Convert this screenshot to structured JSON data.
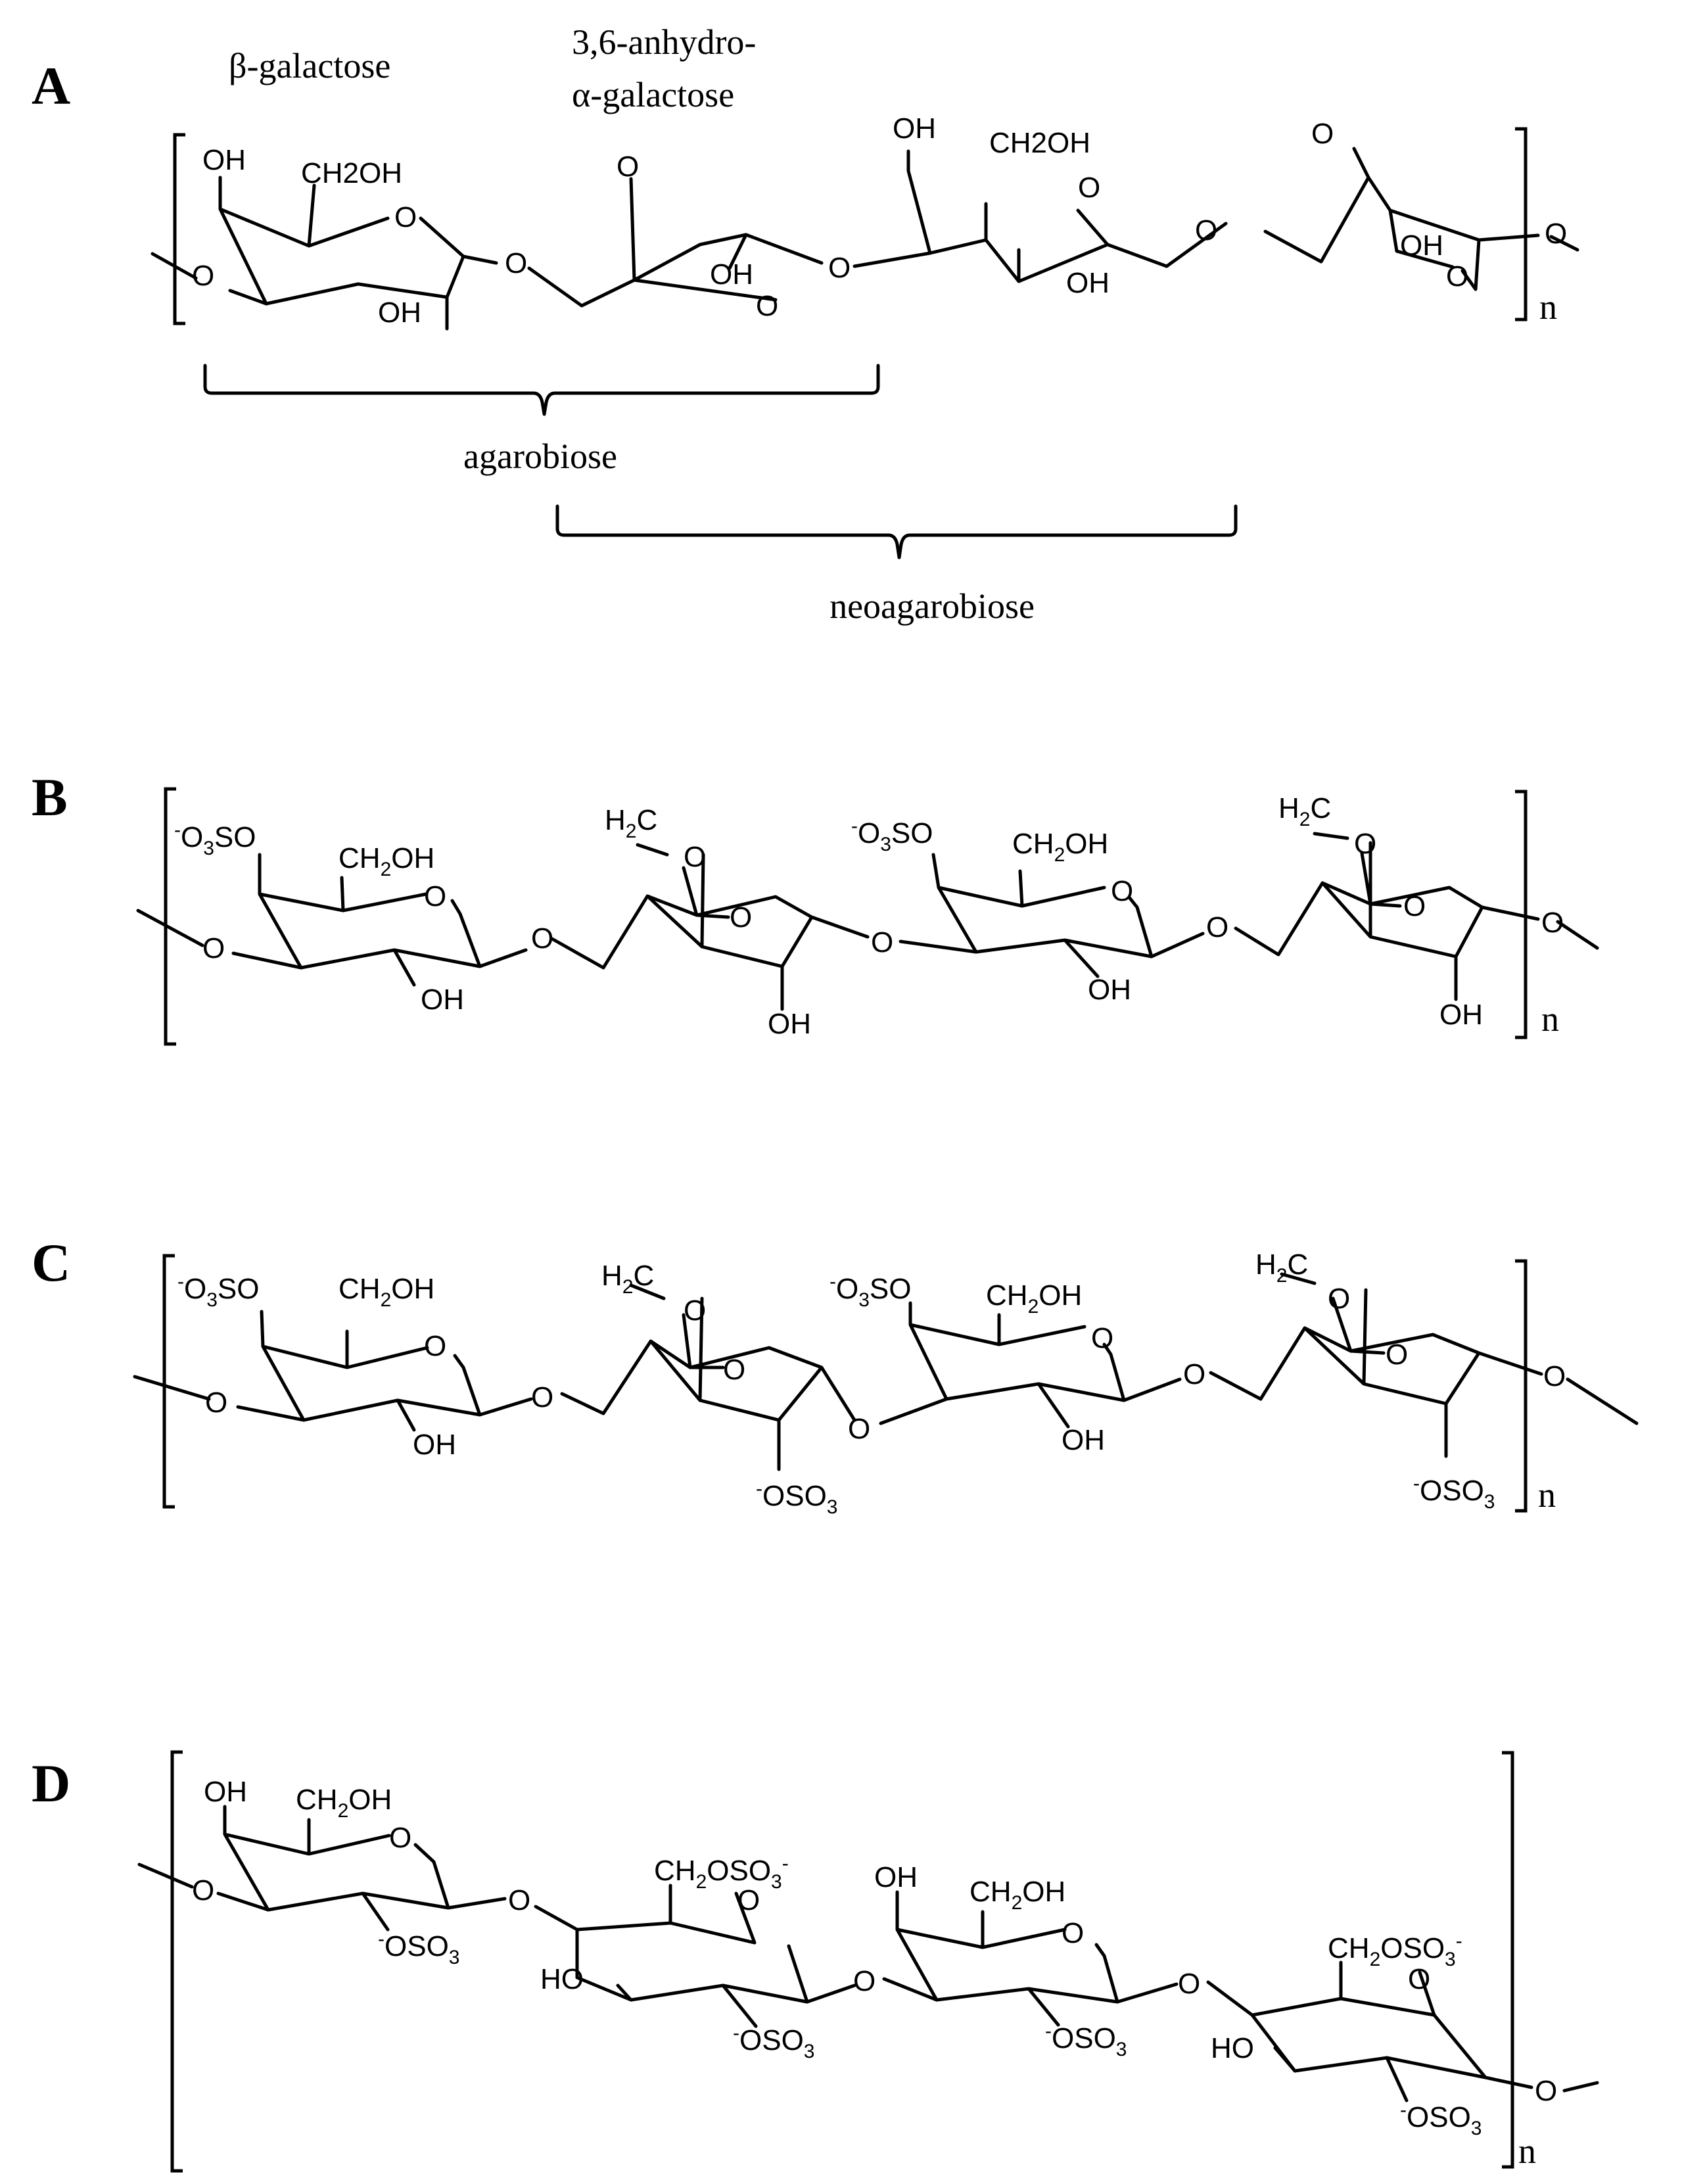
{
  "panels": {
    "a": {
      "label": "A",
      "unit1_name": "β-galactose",
      "unit2_name_line1": "3,6-anhydro-",
      "unit2_name_line2": "α-galactose",
      "brace1_label": "agarobiose",
      "brace2_label": "neoagarobiose",
      "repeat": "n",
      "atoms": {
        "oh1": "OH",
        "ch2oh1": "CH2OH",
        "o_ring1": "O",
        "oh_low1": "OH",
        "o_left": "O",
        "o_link1": "O",
        "o_bridge2": "O",
        "oh2": "OH",
        "o_ring2": "O",
        "o_link2": "O",
        "oh3": "OH",
        "ch2oh3": "CH2OH",
        "o_ring3": "O",
        "oh_low3": "OH",
        "o_link3": "O",
        "o_bridge4": "O",
        "oh4": "OH",
        "o_ring4": "O",
        "o_right": "O"
      }
    },
    "b": {
      "label": "B",
      "repeat": "n",
      "atoms": {
        "so3_1": "-O3SO",
        "ch2oh1": "CH2OH",
        "o_ring1": "O",
        "oh_low1": "OH",
        "o_left": "O",
        "o_link1": "O",
        "h2c2": "H2C",
        "o_bridge2": "O",
        "o_ring2": "O",
        "oh2": "OH",
        "o_link2": "O",
        "so3_3": "-O3SO",
        "ch2oh3": "CH2OH",
        "o_ring3": "O",
        "oh_low3": "OH",
        "o_link3": "O",
        "h2c4": "H2C",
        "o_bridge4": "O",
        "o_ring4": "O",
        "oh4": "OH",
        "o_right": "O"
      }
    },
    "c": {
      "label": "C",
      "repeat": "n",
      "atoms": {
        "so3_1": "-O3SO",
        "ch2oh1": "CH2OH",
        "o_ring1": "O",
        "oh_low1": "OH",
        "o_left": "O",
        "o_link1": "O",
        "h2c2": "H2C",
        "o_bridge2": "O",
        "o_ring2": "O",
        "oso3_2": "-OSO3",
        "o_link2": "O",
        "so3_3": "-O3SO",
        "ch2oh3": "CH2OH",
        "o_ring3": "O",
        "oh_low3": "OH",
        "o_link3": "O",
        "h2c4": "H2C",
        "o_bridge4": "O",
        "o_ring4": "O",
        "oso3_4": "-OSO3",
        "o_right": "O"
      }
    },
    "d": {
      "label": "D",
      "repeat": "n",
      "atoms": {
        "oh1": "OH",
        "ch2oh1": "CH2OH",
        "o_ring1": "O",
        "oso3_1": "-OSO3",
        "o_left": "O",
        "o_link1": "O",
        "ch2oso3_2": "CH2OSO3-",
        "o_ring2": "O",
        "ho2": "HO",
        "oso3_2": "-OSO3",
        "o_link2": "O",
        "oh3": "OH",
        "ch2oh3": "CH2OH",
        "o_ring3": "O",
        "oso3_3": "-OSO3",
        "o_link3": "O",
        "ch2oso3_4": "CH2OSO3-",
        "o_ring4": "O",
        "ho4": "HO",
        "oso3_4": "-OSO3",
        "o_right": "O"
      }
    }
  }
}
